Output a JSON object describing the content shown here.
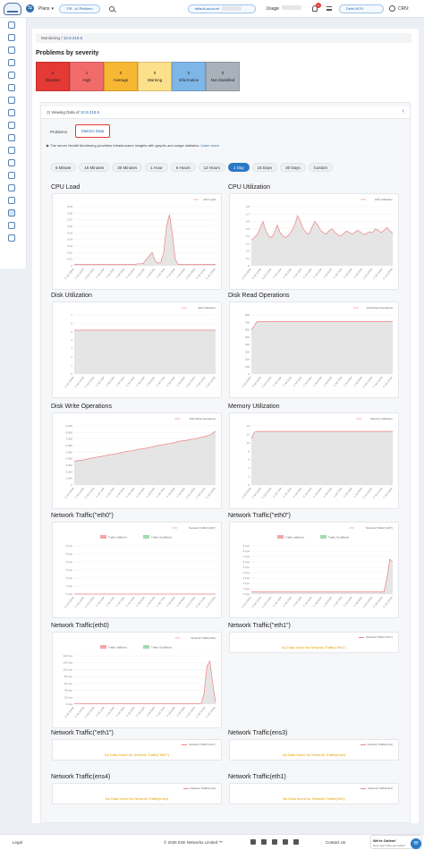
{
  "topbar": {
    "plans": "Plans",
    "workspace_pill": "TIR - AI Platform",
    "account_pill": "default-account",
    "usage": "Usage",
    "notif_count": "2",
    "region_pill": "Delhi-NCR",
    "crn": "CRN:"
  },
  "breadcrumb": {
    "root": "Monitoring",
    "sep": "/",
    "current": "10.9.218.6"
  },
  "severity": {
    "title": "Problems by severity",
    "items": [
      {
        "count": "0",
        "label": "Disaster",
        "color": "#e53935"
      },
      {
        "count": "1",
        "label": "High",
        "color": "#f26b6b"
      },
      {
        "count": "0",
        "label": "Average",
        "color": "#f7b733"
      },
      {
        "count": "0",
        "label": "Warning",
        "color": "#fde08a"
      },
      {
        "count": "0",
        "label": "Information",
        "color": "#7fb6e8"
      },
      {
        "count": "0",
        "label": "Not classified",
        "color": "#a9b1ba"
      }
    ]
  },
  "panel": {
    "viewing_prefix": "Viewing Data of",
    "viewing_ip": "10.9.218.6",
    "tabs": [
      "Problems",
      "Metrics Data"
    ],
    "info_text": "The server Health Monitoring providers infrastructure insights with graphs and usage statistics.",
    "learn_more": "Learn more",
    "ranges": [
      "5 Minute",
      "15 Minutes",
      "30 Minutes",
      "1 Hour",
      "6 Hours",
      "12 Hours",
      "1 Day",
      "15 Days",
      "30 Days",
      "Custom"
    ],
    "active_range": "1 Day"
  },
  "x_ticks": [
    "3 Jul 10PM",
    "3 Jul 11PM",
    "4 Jul 12AM",
    "4 Jul 1AM",
    "4 Jul 2AM",
    "4 Jul 3AM",
    "4 Jul 4AM",
    "4 Jul 5AM",
    "4 Jul 6AM",
    "4 Jul 7AM",
    "4 Jul 8AM",
    "4 Jul 9AM",
    "4 Jul 10AM",
    "4 Jul 11AM",
    "4 Jul 12PM"
  ],
  "chart_data": [
    {
      "type": "area",
      "title": "CPU Load",
      "legend": [
        "CPU Load"
      ],
      "yticks": [
        "0.09",
        "0.08",
        "0.07",
        "0.06",
        "0.05",
        "0.04",
        "0.03",
        "0.02",
        "0.01",
        "0"
      ],
      "ylim": [
        0,
        0.09
      ],
      "values": [
        0.002,
        0.002,
        0.002,
        0.002,
        0.002,
        0.002,
        0.002,
        0.002,
        0.002,
        0.002,
        0.002,
        0.002,
        0.002,
        0.002,
        0.002,
        0.002,
        0.002,
        0.002,
        0.002,
        0.002,
        0.002,
        0.002,
        0.003,
        0.003,
        0.004,
        0.01,
        0.015,
        0.02,
        0.008,
        0.004,
        0.005,
        0.02,
        0.06,
        0.078,
        0.05,
        0.01,
        0.002,
        0.002,
        0.002,
        0.002,
        0.002,
        0.002,
        0.002,
        0.002,
        0.002,
        0.002,
        0.002,
        0.002,
        0.002,
        0.002
      ]
    },
    {
      "type": "area",
      "title": "CPU Utilization",
      "legend": [
        "CPU Utilization"
      ],
      "yticks": [
        "0.8",
        "0.7",
        "0.6",
        "0.5",
        "0.4",
        "0.3",
        "0.2",
        "0.1",
        "0"
      ],
      "ylim": [
        0,
        0.8
      ],
      "values": [
        0.35,
        0.38,
        0.42,
        0.5,
        0.6,
        0.48,
        0.4,
        0.38,
        0.45,
        0.55,
        0.45,
        0.4,
        0.38,
        0.42,
        0.47,
        0.55,
        0.68,
        0.6,
        0.5,
        0.45,
        0.43,
        0.52,
        0.6,
        0.55,
        0.48,
        0.45,
        0.43,
        0.48,
        0.5,
        0.45,
        0.42,
        0.4,
        0.44,
        0.47,
        0.45,
        0.43,
        0.46,
        0.48,
        0.45,
        0.42,
        0.44,
        0.46,
        0.45,
        0.5,
        0.48,
        0.45,
        0.48,
        0.52,
        0.47,
        0.44
      ]
    },
    {
      "type": "area",
      "title": "Disk Utilization",
      "legend": [
        "Disk Utilization"
      ],
      "yticks": [
        "7",
        "6",
        "5",
        "4",
        "3",
        "2",
        "1",
        "0"
      ],
      "ylim": [
        0,
        7
      ],
      "values": [
        5.2,
        5.2,
        5.2,
        5.2,
        5.2,
        5.2,
        5.2,
        5.2,
        5.2,
        5.2,
        5.2,
        5.2,
        5.2,
        5.2,
        5.2,
        5.2,
        5.2,
        5.2,
        5.2,
        5.2,
        5.2,
        5.2,
        5.2,
        5.2,
        5.2,
        5.2,
        5.2,
        5.2,
        5.2,
        5.2,
        5.2,
        5.2,
        5.2,
        5.2,
        5.2,
        5.2,
        5.2,
        5.2,
        5.2,
        5.2,
        5.2,
        5.2,
        5.2,
        5.2,
        5.2,
        5.2,
        5.2,
        5.2,
        5.2,
        5.2
      ]
    },
    {
      "type": "area",
      "title": "Disk Read Operations",
      "legend": [
        "Disk Read Operations"
      ],
      "yticks": [
        "800",
        "700",
        "600",
        "500",
        "400",
        "300",
        "200",
        "100",
        "0"
      ],
      "ylim": [
        0,
        800
      ],
      "values": [
        600,
        650,
        710,
        710,
        710,
        710,
        710,
        710,
        710,
        710,
        710,
        710,
        710,
        710,
        710,
        710,
        710,
        710,
        710,
        710,
        710,
        710,
        710,
        710,
        710,
        710,
        710,
        710,
        710,
        710,
        710,
        710,
        710,
        710,
        710,
        710,
        710,
        710,
        710,
        710,
        710,
        710,
        710,
        710,
        710,
        710,
        710,
        710,
        710,
        710
      ]
    },
    {
      "type": "area",
      "title": "Disk Write Operations",
      "legend": [
        "Disk Write Operations"
      ],
      "yticks": [
        "9,000",
        "8,000",
        "7,000",
        "6,000",
        "5,000",
        "4,000",
        "3,000",
        "2,000",
        "1,000",
        "0"
      ],
      "ylim": [
        0,
        9000
      ],
      "values": [
        3600,
        3700,
        3750,
        3800,
        3900,
        4000,
        4100,
        4150,
        4250,
        4300,
        4400,
        4500,
        4600,
        4650,
        4700,
        4800,
        4900,
        5000,
        5100,
        5150,
        5200,
        5300,
        5400,
        5500,
        5550,
        5600,
        5700,
        5800,
        5900,
        6000,
        6100,
        6150,
        6200,
        6300,
        6400,
        6500,
        6600,
        6700,
        6750,
        6800,
        6900,
        7000,
        7050,
        7150,
        7250,
        7350,
        7450,
        7600,
        7900,
        8200
      ]
    },
    {
      "type": "area",
      "title": "Memory Utilization",
      "legend": [
        "Memory Utilization"
      ],
      "yticks": [
        "14",
        "12",
        "10",
        "8",
        "6",
        "4",
        "2",
        "0"
      ],
      "ylim": [
        0,
        14
      ],
      "values": [
        11,
        12.5,
        12.7,
        12.7,
        12.7,
        12.7,
        12.7,
        12.7,
        12.7,
        12.7,
        12.7,
        12.7,
        12.7,
        12.7,
        12.7,
        12.7,
        12.7,
        12.7,
        12.7,
        12.7,
        12.7,
        12.7,
        12.7,
        12.7,
        12.7,
        12.7,
        12.7,
        12.7,
        12.7,
        12.7,
        12.7,
        12.7,
        12.7,
        12.7,
        12.7,
        12.7,
        12.7,
        12.7,
        12.7,
        12.7,
        12.7,
        12.7,
        12.7,
        12.7,
        12.7,
        12.7,
        12.7,
        12.7,
        12.7,
        12.7
      ]
    },
    {
      "type": "line",
      "title": "Network Traffic(\"eth0\")",
      "legend": [
        "Network Traffic(\"eth0\")",
        "Traffic In(Bits/s)",
        "Traffic Out(Bits/s)"
      ],
      "yticks": [
        "6 bps",
        "5 bps",
        "4 bps",
        "3 bps",
        "2 bps",
        "1 bps",
        "0 bps"
      ],
      "ylim": [
        0,
        6
      ],
      "values": [
        0,
        0,
        0,
        0,
        0,
        0,
        0,
        0,
        0,
        0,
        0,
        0,
        0,
        0,
        0,
        0,
        0,
        0,
        0,
        0,
        0,
        0,
        0,
        0,
        0,
        0,
        0,
        0,
        0,
        0,
        0,
        0,
        0,
        0,
        0,
        0,
        0,
        0,
        0,
        0,
        0,
        0,
        0,
        0,
        0,
        0,
        0,
        0,
        0,
        0
      ]
    },
    {
      "type": "area",
      "title": "Network Traffic(\"eth0\")",
      "legend": [
        "Network Traffic(\"eth0\")",
        "Traffic In(Bits/s)",
        "Traffic Out(Bits/s)"
      ],
      "yticks": [
        "9 bps",
        "8 bps",
        "7 bps",
        "6 bps",
        "5 bps",
        "4 bps",
        "3 bps",
        "2 bps",
        "1 bps",
        "0 bps"
      ],
      "ylim": [
        0,
        9
      ],
      "values": [
        0.4,
        0.4,
        0.4,
        0.4,
        0.4,
        0.4,
        0.4,
        0.4,
        0.4,
        0.4,
        0.4,
        0.4,
        0.4,
        0.4,
        0.4,
        0.4,
        0.4,
        0.4,
        0.4,
        0.4,
        0.4,
        0.4,
        0.4,
        0.4,
        0.4,
        0.4,
        0.4,
        0.4,
        0.4,
        0.4,
        0.4,
        0.4,
        0.4,
        0.4,
        0.4,
        0.4,
        0.4,
        0.4,
        0.4,
        0.4,
        0.4,
        0.4,
        0.4,
        0.4,
        0.4,
        0.4,
        0.4,
        3,
        6.5,
        6
      ]
    },
    {
      "type": "area",
      "title": "Network Traffic(eth0)",
      "legend": [
        "Network Traffic(eth0)",
        "Traffic In(Bits/s)",
        "Traffic Out(Bits/s)"
      ],
      "yticks": [
        "140 bps",
        "120 bps",
        "100 bps",
        "80 bps",
        "60 bps",
        "40 bps",
        "20 bps",
        "0 bps"
      ],
      "ylim": [
        0,
        140
      ],
      "values": [
        1,
        1,
        1,
        1,
        1,
        1,
        1,
        1,
        1,
        1,
        1,
        1,
        1,
        1,
        1,
        1,
        1,
        1,
        1,
        1,
        1,
        1,
        1,
        1,
        1,
        1,
        1,
        1,
        1,
        1,
        1,
        1,
        1,
        1,
        1,
        1,
        1,
        1,
        1,
        1,
        1,
        1,
        1,
        1,
        2,
        30,
        110,
        125,
        60,
        5
      ]
    }
  ],
  "nodata_cards": [
    {
      "title": "Network Traffic(\"eth1\")",
      "legend": "Network Traffic(\"eth1\")",
      "message": "No Data found for Network Traffic(\"eth1\")"
    },
    {
      "title": "Network Traffic(\"eth1\")",
      "legend": "Network Traffic(\"eth1\")",
      "message": "No Data found for Network Traffic(\"eth1\")"
    },
    {
      "title": "Network Traffic(ens3)",
      "legend": "Network Traffic(ens3)",
      "message": "No Data found for Network Traffic(ens3)"
    },
    {
      "title": "Network Traffic(ens4)",
      "legend": "Network Traffic(ens4)",
      "message": "No Data found for Network Traffic(ens4)"
    },
    {
      "title": "Network Traffic(eth1)",
      "legend": "Network Traffic(eth1)",
      "message": "No Data found for Network Traffic(eth1)"
    }
  ],
  "colors": {
    "accent": "#2b79c6",
    "series": "#f08080",
    "fill": "#e5e5e5",
    "traffic_in": "#f4a6a6",
    "traffic_out": "#a8d8a8"
  },
  "footer": {
    "legal": "Legal",
    "copyright": "© 2025 E2E Networks Limited ™",
    "contact": "Contact Us"
  },
  "chat": {
    "title": "We're Online!",
    "subtitle": "How may I help you today?"
  }
}
